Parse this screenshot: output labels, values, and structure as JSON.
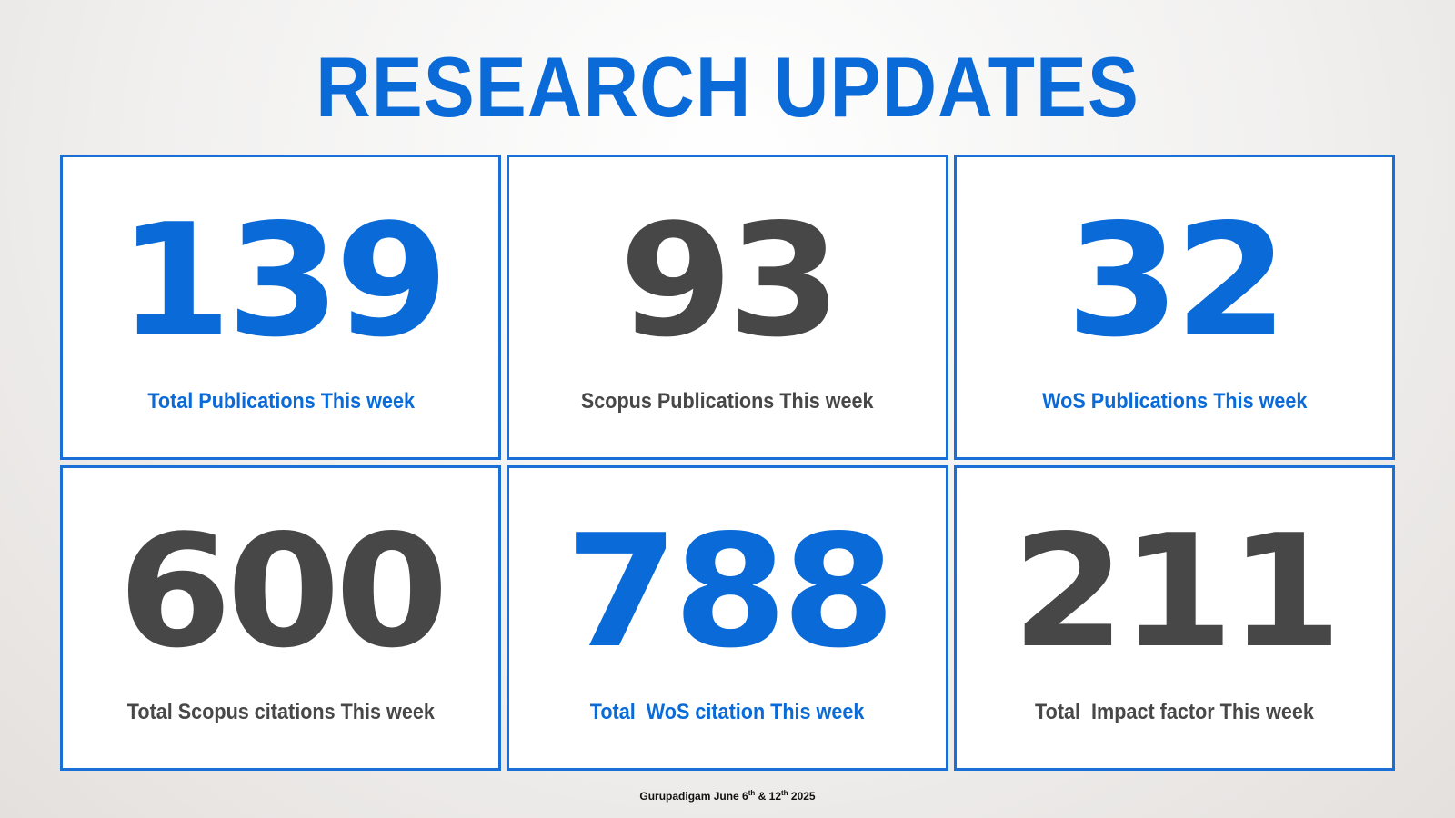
{
  "header": {
    "title": "RESEARCH UPDATES"
  },
  "cards": [
    {
      "value": 139,
      "label": "Total Publications This week"
    },
    {
      "value": 93,
      "label": "Scopus Publications This week"
    },
    {
      "value": 32,
      "label": "WoS Publications This week"
    },
    {
      "value": 600,
      "label": "Total Scopus citations This week"
    },
    {
      "value": 788,
      "label": "Total  WoS citation This week"
    },
    {
      "value": 211,
      "label": "Total  Impact factor This week"
    }
  ],
  "footer": {
    "parts": [
      "Gurupadigam June 6",
      "th",
      "& 12",
      "th",
      "2025"
    ]
  }
}
